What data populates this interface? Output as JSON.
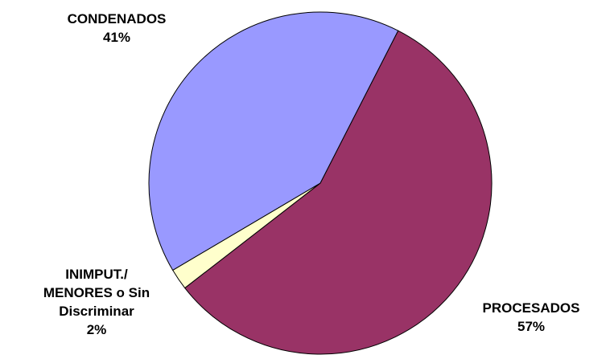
{
  "chart_data": {
    "type": "pie",
    "categories": [
      "PROCESADOS",
      "INIMPUT./ MENORES o Sin Discriminar",
      "CONDENADOS"
    ],
    "values": [
      57,
      2,
      41
    ],
    "value_labels": [
      "57%",
      "2%",
      "41%"
    ],
    "colors": [
      "#993366",
      "#ffffcc",
      "#9999ff"
    ]
  }
}
